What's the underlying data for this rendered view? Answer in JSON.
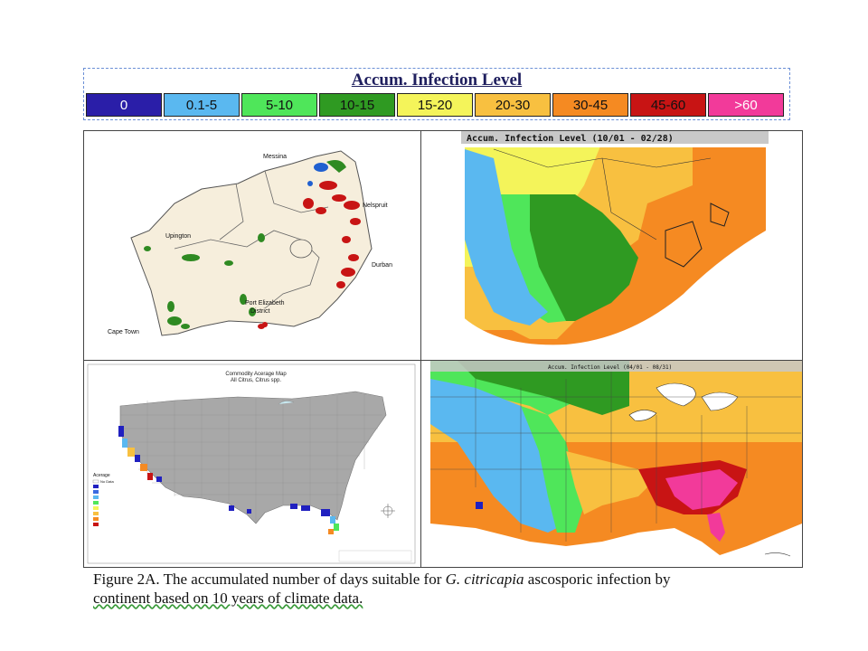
{
  "legend": {
    "title": "Accum. Infection Level",
    "items": [
      {
        "label": "0",
        "color": "#2a1ea8",
        "text_color": "#ffffff"
      },
      {
        "label": "0.1-5",
        "color": "#5ab8f0",
        "text_color": "#111111"
      },
      {
        "label": "5-10",
        "color": "#4fe65a",
        "text_color": "#111111"
      },
      {
        "label": "10-15",
        "color": "#2f9a22",
        "text_color": "#111111"
      },
      {
        "label": "15-20",
        "color": "#f4f45a",
        "text_color": "#111111"
      },
      {
        "label": "20-30",
        "color": "#f8c040",
        "text_color": "#111111"
      },
      {
        "label": "30-45",
        "color": "#f58a22",
        "text_color": "#111111"
      },
      {
        "label": "45-60",
        "color": "#c81414",
        "text_color": "#111111"
      },
      {
        "label": ">60",
        "color": "#f23a9a",
        "text_color": "#ffffff"
      }
    ]
  },
  "panels": {
    "south_africa_map": {
      "labels": [
        "Messina",
        "Nelspruit",
        "Upington",
        "Durban",
        "Port Elizabeth",
        "District",
        "Cape Town"
      ]
    },
    "south_africa_infection": {
      "title": "Accum. Infection Level (10/01 - 02/28)"
    },
    "us_commodity": {
      "title": "Commodity Acerage Map",
      "subtitle": "All Citrus, Citrus spp.",
      "legend_title": "Acerage",
      "legend_first": "No Data"
    },
    "us_infection": {
      "title": "Accum. Infection Level (04/01 - 08/31)"
    }
  },
  "caption": {
    "prefix": "Figure 2A.    The accumulated number of days suitable for ",
    "species": "G. citricapia",
    "middle": " ascosporic infection by",
    "line2": "continent based on 10 years of climate data."
  }
}
